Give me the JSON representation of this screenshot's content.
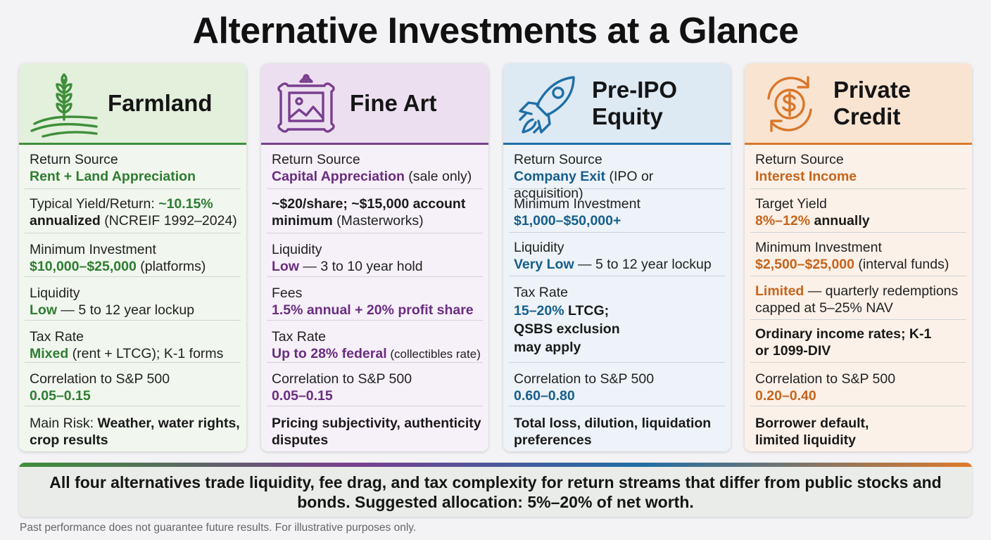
{
  "title": "Alternative Investments at a Glance",
  "colors": {
    "farmland": "#3e8f39",
    "fine_art": "#7a3f8f",
    "pre_ipo": "#1f6fa6",
    "private_credit": "#d9772a"
  },
  "cards": [
    {
      "name": "Farmland",
      "icon": "wheat-field-icon",
      "rows": {
        "return_source_label": "Return Source",
        "return_source_value": "Rent + Land Appreciation",
        "yield_label": "Typical Yield/Return: ",
        "yield_value_a": "~10.15%",
        "yield_value_b": "annualized",
        "yield_note": " (NCREIF 1992–2024)",
        "min_label": "Minimum Investment",
        "min_value": "$10,000–$25,000",
        "min_note": " (platforms)",
        "liq_label": "Liquidity",
        "liq_value": "Low",
        "liq_note": " — 5 to 12 year lockup",
        "tax_label": "Tax Rate",
        "tax_value": "Mixed",
        "tax_note": " (rent + LTCG); K-1 forms",
        "corr_label": "Correlation to S&P 500",
        "corr_value": "0.05–0.15",
        "risk_label": "Main Risk: ",
        "risk_value": "Weather, water rights, crop results"
      }
    },
    {
      "name": "Fine Art",
      "icon": "picture-frame-icon",
      "rows": {
        "return_source_label": "Return Source",
        "return_source_value": "Capital Appreciation",
        "return_source_note": " (sale only)",
        "min_value": "~$20/share; ~$15,000 account minimum",
        "min_note": " (Masterworks)",
        "liq_label": "Liquidity",
        "liq_value": "Low",
        "liq_note": " — 3 to 10 year hold",
        "fees_label": "Fees",
        "fees_value": "1.5% annual + 20% profit share",
        "tax_label": "Tax Rate",
        "tax_value_a": "Up to ",
        "tax_value_b": "28%",
        "tax_value_c": " federal",
        "tax_note": " (collectibles rate)",
        "corr_label": "Correlation to S&P 500",
        "corr_value": "0.05–0.15",
        "risk_value": "Pricing subjectivity, authenticity disputes"
      }
    },
    {
      "name_line1": "Pre-IPO",
      "name_line2": "Equity",
      "icon": "rocket-icon",
      "rows": {
        "return_source_label": "Return Source",
        "return_source_value": "Company Exit",
        "return_source_note": " (IPO or acquisition)",
        "min_label": "Minimum Investment",
        "min_value": "$1,000–$50,000+",
        "liq_label": "Liquidity",
        "liq_value": "Very Low",
        "liq_note": " — 5 to 12 year lockup",
        "tax_label": "Tax Rate",
        "tax_value": "15–20%",
        "tax_value_b": " LTCG;",
        "tax_value_c": "QSBS exclusion may apply",
        "corr_label": "Correlation to S&P 500",
        "corr_value": "0.60–0.80",
        "risk_value": "Total loss, dilution, liquidation preferences"
      }
    },
    {
      "name_line1": "Private",
      "name_line2": "Credit",
      "icon": "dollar-cycle-icon",
      "rows": {
        "return_source_label": "Return Source",
        "return_source_value": "Interest Income",
        "yield_label": "Target Yield",
        "yield_value": "8%–12%",
        "yield_note": " annually",
        "min_label": "Minimum Investment",
        "min_value": "$2,500–$25,000",
        "min_note": " (interval funds)",
        "liq_value": "Limited",
        "liq_note": " — quarterly redemptions capped at 5–25% NAV",
        "tax_value": "Ordinary income rates; K-1 or 1099-DIV",
        "corr_label": "Correlation to S&P 500",
        "corr_value": "0.20–0.40",
        "risk_value": "Borrower default, limited liquidity"
      }
    }
  ],
  "summary": "All four alternatives trade liquidity, fee drag, and tax complexity for return streams that differ from public stocks and bonds. Suggested allocation: 5%–20% of net worth.",
  "disclaimer": "Past performance does not guarantee future results. For illustrative purposes only."
}
